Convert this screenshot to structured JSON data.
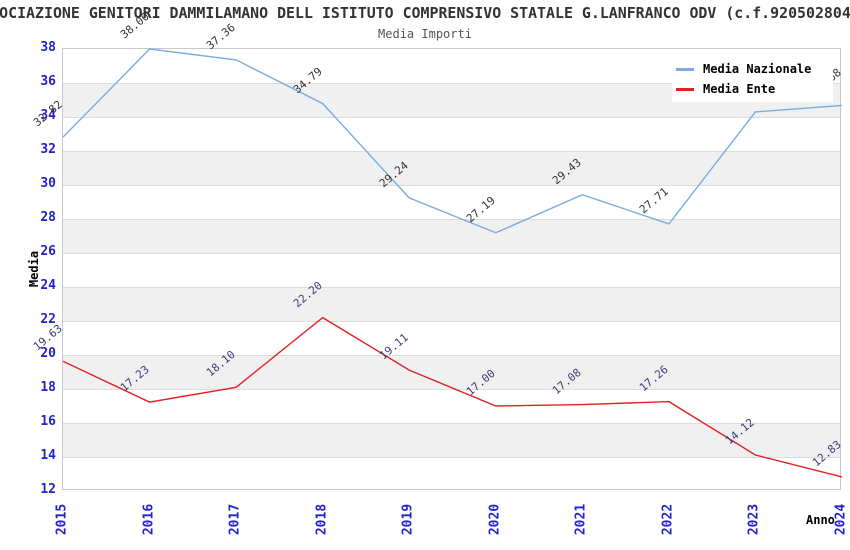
{
  "header": {
    "title": "OCIAZIONE GENITORI DAMMILAMANO DELL ISTITUTO COMPRENSIVO STATALE G.LANFRANCO ODV (c.f.920502804",
    "subtitle": "Media Importi"
  },
  "chart_data": {
    "type": "line",
    "x": [
      "2015",
      "2016",
      "2017",
      "2018",
      "2019",
      "2020",
      "2021",
      "2022",
      "2023",
      "2024"
    ],
    "series": [
      {
        "name": "Media Nazionale",
        "color": "#7cacdc",
        "label_color": "#333333",
        "values": [
          32.82,
          38.0,
          37.36,
          34.79,
          29.24,
          27.19,
          29.43,
          27.71,
          34.3,
          34.68
        ]
      },
      {
        "name": "Media Ente",
        "color": "#e02222",
        "label_color": "#3c3c78",
        "values": [
          19.63,
          17.23,
          18.1,
          22.2,
          19.11,
          17.0,
          17.08,
          17.26,
          14.12,
          12.83
        ]
      }
    ],
    "xlabel": "Anno",
    "ylabel": "Media",
    "ylim": [
      12,
      38
    ],
    "ytick_step": 2,
    "grid": "horizontal-bands",
    "legend_position": "top-right",
    "colors": {
      "axis_tick_label": "#2222cc",
      "band_alt": "#f0f0f0",
      "gridline": "#dcdcdc",
      "plot_border": "#c8c8c8",
      "title": "#333333",
      "subtitle": "#555555"
    }
  }
}
